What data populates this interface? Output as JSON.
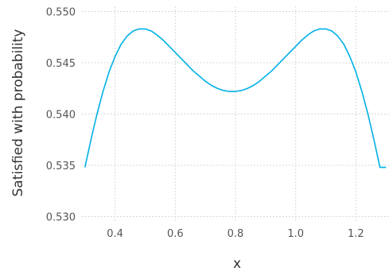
{
  "chart_data": {
    "type": "line",
    "title": "",
    "xlabel": "x",
    "ylabel": "Satisfied with probability",
    "xlim": [
      0.29,
      1.31
    ],
    "ylim": [
      0.5295,
      0.5505
    ],
    "xticks": [
      0.4,
      0.6,
      0.8,
      1.0,
      1.2
    ],
    "xtick_labels": [
      "0.4",
      "0.6",
      "0.8",
      "1.0",
      "1.2"
    ],
    "yticks": [
      0.53,
      0.535,
      0.54,
      0.545,
      0.55
    ],
    "ytick_labels": [
      "0.530",
      "0.535",
      "0.540",
      "0.545",
      "0.550"
    ],
    "grid": true,
    "series": [
      {
        "color": "#00b0e6",
        "x": [
          0.3,
          0.32,
          0.34,
          0.36,
          0.38,
          0.4,
          0.42,
          0.44,
          0.46,
          0.48,
          0.5,
          0.52,
          0.54,
          0.56,
          0.58,
          0.6,
          0.62,
          0.64,
          0.66,
          0.68,
          0.7,
          0.72,
          0.74,
          0.76,
          0.78,
          0.8,
          0.82,
          0.84,
          0.86,
          0.88,
          0.9,
          0.92,
          0.94,
          0.96,
          0.98,
          1.0,
          1.02,
          1.04,
          1.06,
          1.08,
          1.1,
          1.12,
          1.14,
          1.16,
          1.18,
          1.2,
          1.22,
          1.24,
          1.26,
          1.28,
          1.3
        ],
        "y": [
          0.5348,
          0.5375,
          0.54,
          0.5422,
          0.5441,
          0.5456,
          0.5468,
          0.5476,
          0.5481,
          0.5483,
          0.5483,
          0.5481,
          0.5477,
          0.5472,
          0.5466,
          0.546,
          0.5454,
          0.5448,
          0.5442,
          0.5437,
          0.5432,
          0.5428,
          0.5425,
          0.5423,
          0.5422,
          0.5422,
          0.5423,
          0.5425,
          0.5428,
          0.5432,
          0.5437,
          0.5442,
          0.5448,
          0.5454,
          0.546,
          0.5466,
          0.5472,
          0.5477,
          0.5481,
          0.5483,
          0.5483,
          0.5481,
          0.5476,
          0.5468,
          0.5456,
          0.5441,
          0.5422,
          0.54,
          0.5375,
          0.5348,
          0.5348
        ]
      }
    ]
  }
}
